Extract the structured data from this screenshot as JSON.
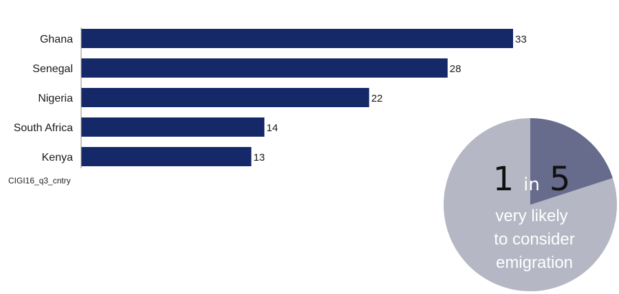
{
  "chart_data": {
    "type": "bar",
    "orientation": "horizontal",
    "categories": [
      "Ghana",
      "Senegal",
      "Nigeria",
      "South Africa",
      "Kenya"
    ],
    "values": [
      33,
      28,
      22,
      14,
      13
    ],
    "xlim": [
      0,
      34
    ],
    "grid": false,
    "bar_color": "#152868"
  },
  "source_label": "CIGI16_q3_cntry",
  "callout": {
    "type": "pie",
    "numerator": "1",
    "connector": "in",
    "denominator": "5",
    "caption_lines": [
      "very likely",
      "to consider",
      "emigration"
    ],
    "highlight_fraction": 0.2,
    "highlight_color": "#676b8c",
    "base_color": "#b5b7c4"
  }
}
